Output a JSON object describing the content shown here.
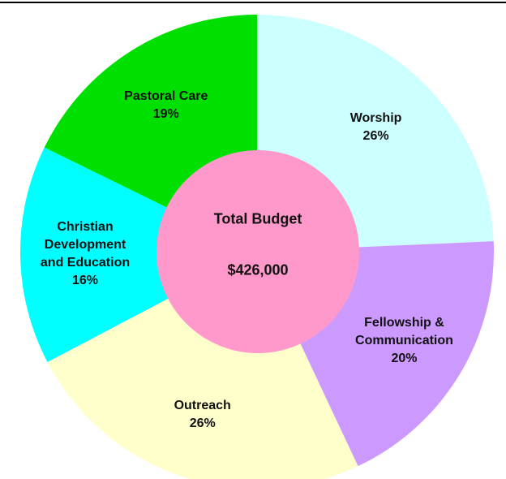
{
  "chart_data": {
    "type": "pie",
    "categories": [
      "Worship",
      "Fellowship & Communication",
      "Outreach",
      "Christian Development and Education",
      "Pastoral Care"
    ],
    "values": [
      26,
      20,
      26,
      16,
      19
    ],
    "value_labels": [
      "26%",
      "20%",
      "26%",
      "16%",
      "19%"
    ],
    "colors": [
      "#ccffff",
      "#cc99ff",
      "#ffffcc",
      "#00ffff",
      "#00e000"
    ],
    "center_color": "#ff99cc",
    "center_text": [
      "Total Budget",
      "$426,000"
    ]
  }
}
